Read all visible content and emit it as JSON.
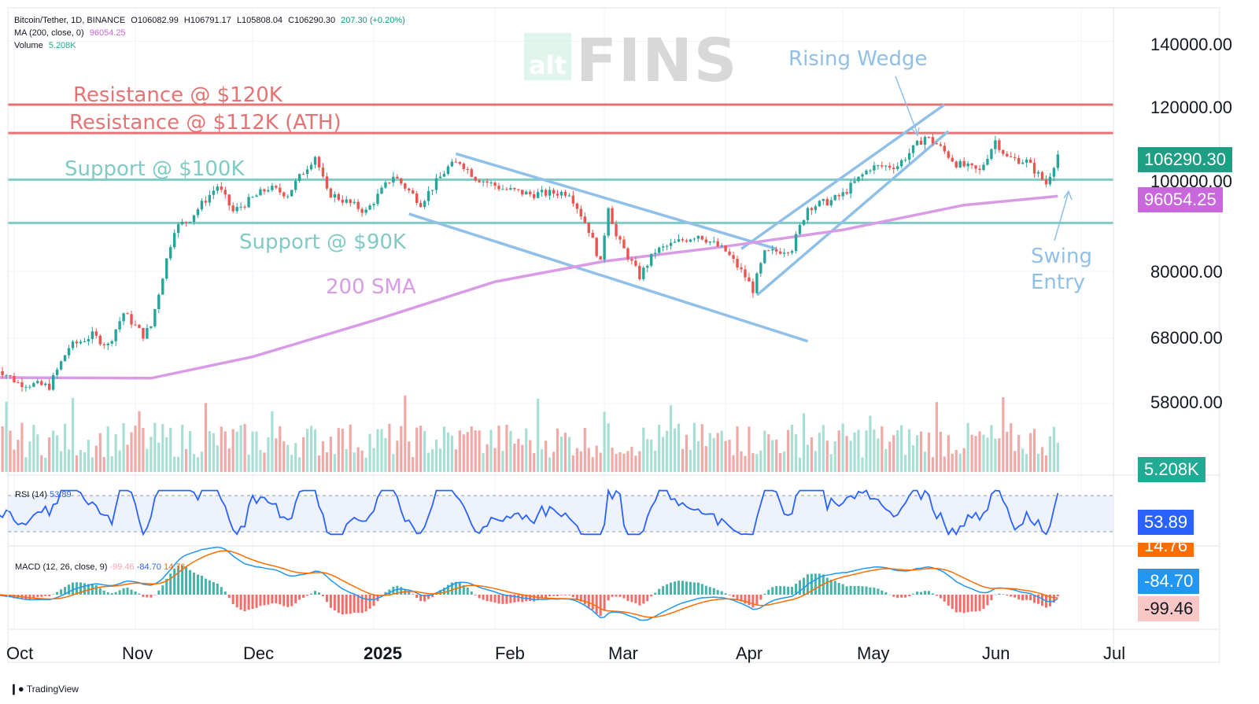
{
  "header": {
    "symbol": "Bitcoin/Tether, 1D, BINANCE",
    "open": "O106082.99",
    "high": "H106791.17",
    "low": "L105808.04",
    "close": "C106290.30",
    "change": "207.30 (+0.20%)",
    "ma_label": "MA (200, close, 0)",
    "ma_value": "96054.25",
    "volume_label": "Volume",
    "volume_value": "5.208K"
  },
  "rsi_header": {
    "label": "RSI (14)",
    "value": "53.89"
  },
  "macd_header": {
    "label": "MACD (12, 26, close, 9)",
    "v1": "-99.46",
    "v2": "-84.70",
    "v3": "14.76"
  },
  "watermark": {
    "small": "alt",
    "big": "FINS"
  },
  "annotations": {
    "res120": "Resistance @ $120K",
    "res112": "Resistance @ $112K (ATH)",
    "sup100": "Support @ $100K",
    "sup90": "Support @ $90K",
    "sma": "200 SMA",
    "wedge": "Rising Wedge",
    "swing1": "Swing",
    "swing2": "Entry"
  },
  "price_axis": [
    "140000.00",
    "120000.00",
    "100000.00",
    "80000.00",
    "68000.00",
    "58000.00"
  ],
  "badges": {
    "price": "106290.30",
    "ma": "96054.25",
    "volume": "5.208K",
    "rsi": "53.89",
    "macd_signal": "-84.70",
    "macd_line": "-99.46",
    "macd_hist_partial": "14.76"
  },
  "x_axis": {
    "labels": [
      "Oct",
      "Nov",
      "Dec",
      "2025",
      "Feb",
      "Mar",
      "Apr",
      "May",
      "Jun",
      "Jul"
    ]
  },
  "footer": {
    "brand": "TradingView"
  },
  "colors": {
    "up": "#26a69a",
    "down": "#ef5350",
    "resistance": "#e57373",
    "support": "#80cbc4",
    "sma": "#d89be6",
    "trend": "#90c0e8",
    "rsi": "#2962ff",
    "macd": "#2196f3",
    "signal": "#ff6d00"
  },
  "chart_data": {
    "type": "candlestick",
    "symbol": "BTC/USDT",
    "timeframe": "1D",
    "price_scale": "log",
    "horizontal_levels": [
      {
        "label": "Resistance @ $120K",
        "price": 120000
      },
      {
        "label": "Resistance @ $112K (ATH)",
        "price": 112000
      },
      {
        "label": "Support @ $100K",
        "price": 100000
      },
      {
        "label": "Support @ $90K",
        "price": 90000
      }
    ],
    "price_path": [
      [
        "2024-09-26",
        63500
      ],
      [
        "2024-10-02",
        61000
      ],
      [
        "2024-10-10",
        60500
      ],
      [
        "2024-10-15",
        66500
      ],
      [
        "2024-10-21",
        68500
      ],
      [
        "2024-10-25",
        66800
      ],
      [
        "2024-10-29",
        72300
      ],
      [
        "2024-11-03",
        68500
      ],
      [
        "2024-11-05",
        70000
      ],
      [
        "2024-11-07",
        76000
      ],
      [
        "2024-11-11",
        88700
      ],
      [
        "2024-11-15",
        91000
      ],
      [
        "2024-11-22",
        98500
      ],
      [
        "2024-11-26",
        92500
      ],
      [
        "2024-12-05",
        98000
      ],
      [
        "2024-12-10",
        96500
      ],
      [
        "2024-12-17",
        106000
      ],
      [
        "2024-12-20",
        97000
      ],
      [
        "2024-12-30",
        92500
      ],
      [
        "2025-01-06",
        101000
      ],
      [
        "2025-01-13",
        94500
      ],
      [
        "2025-01-20",
        103000
      ],
      [
        "2025-01-23",
        104500
      ],
      [
        "2025-01-27",
        100500
      ],
      [
        "2025-02-03",
        97800
      ],
      [
        "2025-02-10",
        96500
      ],
      [
        "2025-02-20",
        97000
      ],
      [
        "2025-02-25",
        88500
      ],
      [
        "2025-02-28",
        81500
      ],
      [
        "2025-03-02",
        94000
      ],
      [
        "2025-03-04",
        87000
      ],
      [
        "2025-03-10",
        79000
      ],
      [
        "2025-03-14",
        84000
      ],
      [
        "2025-03-20",
        86000
      ],
      [
        "2025-03-25",
        87500
      ],
      [
        "2025-04-01",
        84000
      ],
      [
        "2025-04-06",
        79000
      ],
      [
        "2025-04-08",
        76500
      ],
      [
        "2025-04-11",
        83500
      ],
      [
        "2025-04-18",
        84700
      ],
      [
        "2025-04-22",
        93500
      ],
      [
        "2025-04-28",
        95000
      ],
      [
        "2025-05-01",
        96500
      ],
      [
        "2025-05-08",
        103000
      ],
      [
        "2025-05-15",
        103500
      ],
      [
        "2025-05-22",
        111000
      ],
      [
        "2025-05-25",
        109000
      ],
      [
        "2025-05-30",
        104000
      ],
      [
        "2025-06-05",
        102000
      ],
      [
        "2025-06-09",
        110000
      ],
      [
        "2025-06-12",
        105500
      ],
      [
        "2025-06-17",
        104500
      ],
      [
        "2025-06-22",
        99000
      ],
      [
        "2025-06-25",
        106290
      ]
    ],
    "ma200_path": [
      [
        "2024-09-26",
        61800
      ],
      [
        "2024-11-05",
        61700
      ],
      [
        "2024-12-01",
        65000
      ],
      [
        "2025-01-01",
        71000
      ],
      [
        "2025-02-01",
        78000
      ],
      [
        "2025-03-01",
        82000
      ],
      [
        "2025-04-01",
        85000
      ],
      [
        "2025-05-01",
        88500
      ],
      [
        "2025-06-01",
        94000
      ],
      [
        "2025-06-25",
        96054.25
      ]
    ],
    "rsi": {
      "period": 14,
      "last": 53.89
    },
    "macd": {
      "params": [
        12,
        26,
        9
      ],
      "macd": -99.46,
      "signal": -84.7,
      "histogram": 14.76
    },
    "volume": {
      "last": "5.208K"
    }
  }
}
